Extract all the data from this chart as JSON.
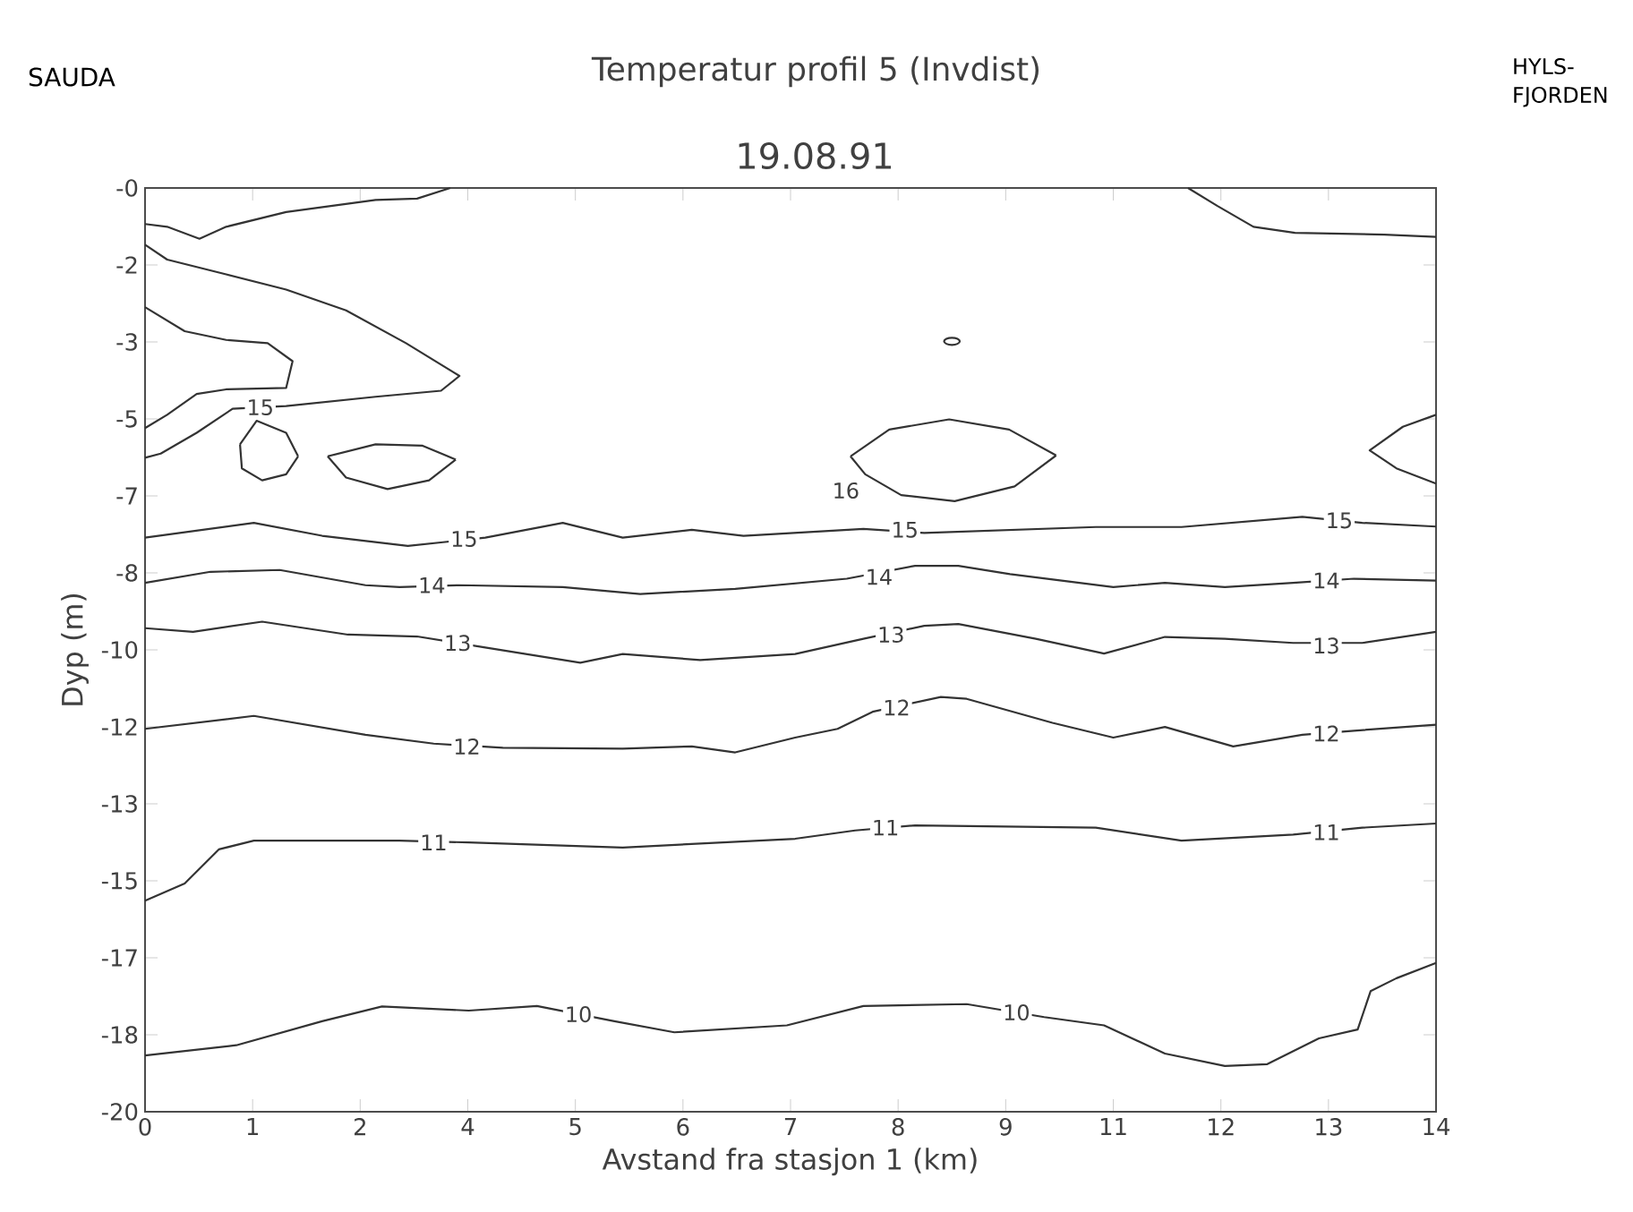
{
  "chart_data": {
    "type": "line",
    "title": "Temperatur profil 5 (Invdist)",
    "subtitle": "19.08.91",
    "xlabel": "Avstand fra stasjon 1 (km)",
    "ylabel": "Dyp (m)",
    "xlim": [
      0,
      14
    ],
    "ylim": [
      -20,
      0
    ],
    "xticks": [
      {
        "value": 0,
        "label": "0"
      },
      {
        "value": 1.1667,
        "label": "1"
      },
      {
        "value": 2.3333,
        "label": "2"
      },
      {
        "value": 3.5,
        "label": "4"
      },
      {
        "value": 4.6667,
        "label": "5"
      },
      {
        "value": 5.8333,
        "label": "6"
      },
      {
        "value": 7,
        "label": "7"
      },
      {
        "value": 8.1667,
        "label": "8"
      },
      {
        "value": 9.3333,
        "label": "9"
      },
      {
        "value": 10.5,
        "label": "11"
      },
      {
        "value": 11.6667,
        "label": "12"
      },
      {
        "value": 12.8333,
        "label": "13"
      },
      {
        "value": 14,
        "label": "14"
      }
    ],
    "yticks": [
      {
        "value": 0,
        "label": "-0"
      },
      {
        "value": -1.6667,
        "label": "-2"
      },
      {
        "value": -3.3333,
        "label": "-3"
      },
      {
        "value": -5,
        "label": "-5"
      },
      {
        "value": -6.6667,
        "label": "-7"
      },
      {
        "value": -8.3333,
        "label": "-8"
      },
      {
        "value": -10,
        "label": "-10"
      },
      {
        "value": -11.6667,
        "label": "-12"
      },
      {
        "value": -13.3333,
        "label": "-13"
      },
      {
        "value": -15,
        "label": "-15"
      },
      {
        "value": -16.6667,
        "label": "-17"
      },
      {
        "value": -18.3333,
        "label": "-18"
      },
      {
        "value": -20,
        "label": "-20"
      }
    ],
    "marker": "none",
    "line_style": "solid",
    "series": [
      {
        "color": "#333333",
        "x": [
          0,
          0.24,
          0.59,
          0.88,
          1.53,
          2.5,
          2.95,
          3.31,
          null,
          11.31,
          11.63,
          12.02,
          12.47,
          13.44,
          14,
          null,
          0,
          0.24,
          0.88,
          1.53,
          2.18,
          2.83,
          3.41,
          3.21,
          2.5,
          1.53,
          0.95,
          0.56,
          0.17,
          0,
          null,
          0,
          0.43,
          0.88,
          1.33,
          1.6,
          1.53,
          0.88,
          0.56,
          0.24,
          0,
          null,
          1.03,
          1.21,
          1.53,
          1.66,
          null,
          1.66,
          1.53,
          1.27,
          1.05,
          1.03,
          null,
          1.98,
          2.5,
          3.01,
          3.37,
          null,
          3.37,
          3.08,
          2.63,
          2.18,
          1.98,
          null,
          7.65,
          8.07,
          8.72,
          9.37,
          9.88,
          null,
          9.88,
          9.43,
          8.78,
          8.2,
          7.81,
          7.65,
          null,
          14,
          13.64,
          13.28,
          13.57,
          14,
          null,
          0,
          1.18,
          1.92,
          2.85,
          3.23,
          3.69,
          4.53,
          5.18,
          5.93,
          6.49,
          7.79,
          8.45,
          10.31,
          11.24,
          12.55,
          13.2,
          14,
          null,
          0,
          0.71,
          1.46,
          2.39,
          2.76,
          3.41,
          4.53,
          5.37,
          6.4,
          7.61,
          8.35,
          8.82,
          9.38,
          10.5,
          11.06,
          11.71,
          12.45,
          13.11,
          14,
          null,
          0,
          0.52,
          1.27,
          2.2,
          2.95,
          3.69,
          4.72,
          5.18,
          6.02,
          7.05,
          7.79,
          8.45,
          8.82,
          9.66,
          10.4,
          11.06,
          11.71,
          12.45,
          13.2,
          14,
          null,
          0,
          1.18,
          2.39,
          3.13,
          3.88,
          5.18,
          5.93,
          6.4,
          7.05,
          7.51,
          7.89,
          8.63,
          8.91,
          9.84,
          10.5,
          11.06,
          11.8,
          12.55,
          13.11,
          14,
          null,
          0,
          0.43,
          0.8,
          1.18,
          2.76,
          3.51,
          5.18,
          7.05,
          7.7,
          8.35,
          10.31,
          11.24,
          12.45,
          13.2,
          14,
          null,
          0,
          0.99,
          1.92,
          2.57,
          3.51,
          4.25,
          5.09,
          5.74,
          6.96,
          7.79,
          8.91,
          9.75,
          10.4,
          11.06,
          11.71,
          12.17,
          12.73,
          13.15,
          13.29,
          13.57,
          14
        ],
        "values": [
          -0.78,
          -0.84,
          -1.1,
          -0.84,
          -0.52,
          -0.26,
          -0.23,
          0,
          null,
          0,
          -0.39,
          -0.84,
          -0.97,
          -1.01,
          -1.06,
          null,
          -1.23,
          -1.55,
          -1.87,
          -2.2,
          -2.65,
          -3.36,
          -4.07,
          -4.39,
          -4.52,
          -4.72,
          -4.78,
          -5.3,
          -5.75,
          -5.84,
          null,
          -2.58,
          -3.1,
          -3.29,
          -3.36,
          -3.75,
          -4.33,
          -4.36,
          -4.46,
          -4.91,
          -5.2,
          null,
          -5.55,
          -5.04,
          -5.3,
          -5.81,
          null,
          -5.81,
          -6.2,
          -6.33,
          -6.07,
          -5.55,
          null,
          -5.81,
          -5.55,
          -5.58,
          -5.88,
          null,
          -5.88,
          -6.33,
          -6.52,
          -6.27,
          -5.81,
          null,
          -5.81,
          -5.23,
          -5.01,
          -5.23,
          -5.79,
          null,
          -5.79,
          -6.46,
          -6.78,
          -6.65,
          -6.2,
          -5.81,
          null,
          -4.91,
          -5.17,
          -5.68,
          -6.07,
          -6.4,
          null,
          -7.57,
          -7.25,
          -7.53,
          -7.75,
          -7.67,
          -7.57,
          -7.25,
          -7.57,
          -7.4,
          -7.53,
          -7.38,
          -7.47,
          -7.34,
          -7.34,
          -7.12,
          -7.25,
          -7.33,
          null,
          -8.55,
          -8.31,
          -8.27,
          -8.6,
          -8.64,
          -8.6,
          -8.64,
          -8.79,
          -8.68,
          -8.46,
          -8.18,
          -8.18,
          -8.36,
          -8.64,
          -8.55,
          -8.64,
          -8.55,
          -8.46,
          -8.5,
          null,
          -9.53,
          -9.61,
          -9.39,
          -9.67,
          -9.71,
          -9.95,
          -10.28,
          -10.09,
          -10.22,
          -10.09,
          -9.76,
          -9.48,
          -9.44,
          -9.76,
          -10.08,
          -9.72,
          -9.76,
          -9.85,
          -9.85,
          -9.61,
          null,
          -11.71,
          -11.43,
          -11.84,
          -12.03,
          -12.12,
          -12.14,
          -12.09,
          -12.22,
          -11.9,
          -11.71,
          -11.34,
          -11.02,
          -11.06,
          -11.58,
          -11.9,
          -11.67,
          -12.09,
          -11.84,
          -11.75,
          -11.62,
          null,
          -15.43,
          -15.06,
          -14.32,
          -14.13,
          -14.13,
          -14.17,
          -14.28,
          -14.09,
          -13.91,
          -13.8,
          -13.85,
          -14.13,
          -14.0,
          -13.85,
          -13.76,
          null,
          -18.78,
          -18.56,
          -18.04,
          -17.72,
          -17.81,
          -17.71,
          -18.04,
          -18.28,
          -18.13,
          -17.71,
          -17.67,
          -17.95,
          -18.13,
          -18.74,
          -19.01,
          -18.97,
          -18.41,
          -18.22,
          -17.39,
          -17.11,
          -16.78
        ]
      },
      {
        "type": "scatter",
        "marker": "circle",
        "color": "#333333",
        "x": [
          8.75
        ],
        "values": [
          -3.32
        ]
      }
    ],
    "annotations": [
      "SAUDA",
      "HYLS-FJORDEN",
      {
        "text": "15",
        "x": 1.25,
        "y": -4.75
      },
      {
        "text": "16",
        "x": 7.6,
        "y": -6.55
      },
      {
        "text": "15",
        "x": 3.46,
        "y": -7.6
      },
      {
        "text": "15",
        "x": 8.24,
        "y": -7.4
      },
      {
        "text": "15",
        "x": 12.95,
        "y": -7.2
      },
      {
        "text": "14",
        "x": 3.11,
        "y": -8.6
      },
      {
        "text": "14",
        "x": 7.96,
        "y": -8.42
      },
      {
        "text": "14",
        "x": 12.81,
        "y": -8.5
      },
      {
        "text": "13",
        "x": 3.39,
        "y": -9.85
      },
      {
        "text": "13",
        "x": 8.09,
        "y": -9.67
      },
      {
        "text": "13",
        "x": 12.81,
        "y": -9.91
      },
      {
        "text": "12",
        "x": 3.49,
        "y": -12.09
      },
      {
        "text": "12",
        "x": 8.15,
        "y": -11.25
      },
      {
        "text": "12",
        "x": 12.81,
        "y": -11.81
      },
      {
        "text": "11",
        "x": 3.13,
        "y": -14.17
      },
      {
        "text": "11",
        "x": 8.03,
        "y": -13.85
      },
      {
        "text": "11",
        "x": 12.81,
        "y": -13.95
      },
      {
        "text": "10",
        "x": 4.7,
        "y": -17.89
      },
      {
        "text": "10",
        "x": 9.45,
        "y": -17.85
      }
    ]
  }
}
